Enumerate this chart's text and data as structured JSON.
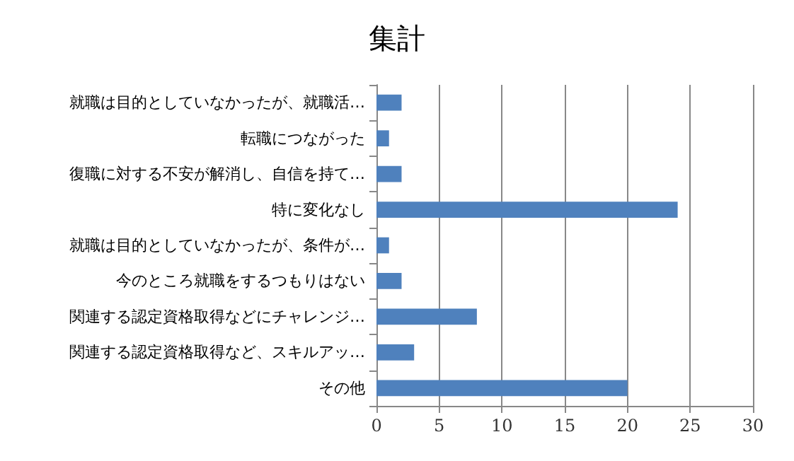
{
  "chart_data": {
    "type": "bar",
    "orientation": "horizontal",
    "title": "集計",
    "categories": [
      "就職は目的としていなかったが、就職活…",
      "転職につながった",
      "復職に対する不安が解消し、自信を持て…",
      "特に変化なし",
      "就職は目的としていなかったが、条件が…",
      "今のところ就職をするつもりはない",
      "関連する認定資格取得などにチャレンジ…",
      "関連する認定資格取得など、スキルアッ…",
      "その他"
    ],
    "values": [
      2,
      1,
      2,
      24,
      1,
      2,
      8,
      3,
      20
    ],
    "color": "#4f81bd",
    "xlim": [
      0,
      30
    ],
    "xticks": [
      0,
      5,
      10,
      15,
      20,
      25,
      30
    ],
    "grid": "x"
  }
}
